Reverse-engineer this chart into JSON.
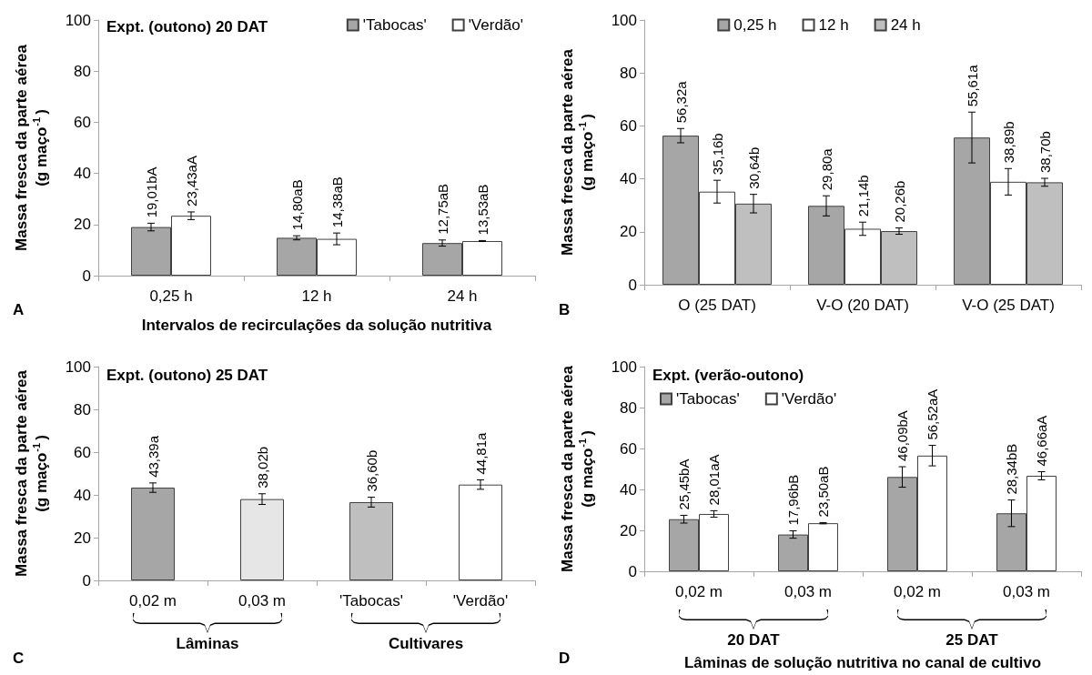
{
  "chart_data": [
    {
      "type": "bar",
      "title": "Expt. (outono) 20 DAT",
      "xlabel": "Intervalos de recirculações da solução nutritiva",
      "ylabel": "Massa fresca da parte aérea\n(g maço$^{-1}$)",
      "categories": [
        "0,25 h",
        "12 h",
        "24 h"
      ],
      "series": [
        {
          "name": "'Tabocas'",
          "color": "#a6a6a6",
          "values": [
            19.01,
            14.8,
            12.75
          ],
          "errors": [
            1.5,
            0.8,
            1.2
          ],
          "value_labels": [
            "19,01bA",
            "14,80aB",
            "12,75aB"
          ]
        },
        {
          "name": "'Verdão'",
          "color": "#ffffff",
          "values": [
            23.43,
            14.38,
            13.53
          ],
          "errors": [
            1.5,
            2.3,
            0.2
          ],
          "value_labels": [
            "23,43aA",
            "14,38aB",
            "13,53aB"
          ]
        }
      ],
      "ylim": [
        0,
        100
      ],
      "yticks": [
        0,
        20,
        40,
        60,
        80,
        100
      ],
      "legend": "top right",
      "grid": false,
      "annotations": [
        "A"
      ]
    },
    {
      "type": "bar",
      "ylabel": "Massa fresca da parte aérea\n(g maço$^{-1}$)",
      "categories": [
        "O (25 DAT)",
        "V-O (20 DAT)",
        "V-O (25 DAT)"
      ],
      "series": [
        {
          "name": "0,25 h",
          "color": "#a6a6a6",
          "values": [
            56.32,
            29.8,
            55.61
          ],
          "errors": [
            2.7,
            3.8,
            9.6
          ],
          "value_labels": [
            "56,32a",
            "29,80a",
            "55,61a"
          ]
        },
        {
          "name": "12 h",
          "color": "#ffffff",
          "values": [
            35.16,
            21.14,
            38.89
          ],
          "errors": [
            4.3,
            2.5,
            5.0
          ],
          "value_labels": [
            "35,16b",
            "21,14b",
            "38,89b"
          ]
        },
        {
          "name": "24 h",
          "color": "#bfbfbf",
          "values": [
            30.64,
            20.26,
            38.7
          ],
          "errors": [
            3.5,
            1.2,
            1.5
          ],
          "value_labels": [
            "30,64b",
            "20,26b",
            "38,70b"
          ]
        }
      ],
      "ylim": [
        0,
        100
      ],
      "yticks": [
        0,
        20,
        40,
        60,
        80,
        100
      ],
      "legend": "top",
      "grid": false,
      "annotations": [
        "B"
      ]
    },
    {
      "type": "bar",
      "title": "Expt. (outono) 25 DAT",
      "ylabel": "Massa fresca da parte aérea\n(g maço$^{-1}$)",
      "categories": [
        "0,02 m",
        "0,03 m",
        "'Tabocas'",
        "'Verdão'"
      ],
      "values": [
        43.39,
        38.02,
        36.6,
        44.81
      ],
      "colors": [
        "#a6a6a6",
        "#e6e6e6",
        "#bfbfbf",
        "#ffffff"
      ],
      "errors": [
        2.2,
        2.5,
        2.3,
        2.2
      ],
      "value_labels": [
        "43,39a",
        "38,02b",
        "36,60b",
        "44,81a"
      ],
      "ylim": [
        0,
        100
      ],
      "yticks": [
        0,
        20,
        40,
        60,
        80,
        100
      ],
      "grid": false,
      "annotations": [
        "C",
        "Lâminas",
        "Cultivares"
      ]
    },
    {
      "type": "bar",
      "title": "Expt. (verão-outono)",
      "xlabel": "Lâminas de solução nutritiva no canal de cultivo",
      "ylabel": "Massa fresca da parte aérea\n(g maço$^{-1}$)",
      "categories": [
        "0,02 m",
        "0,03 m",
        "0,02 m",
        "0,03 m"
      ],
      "series": [
        {
          "name": "'Tabocas'",
          "color": "#a6a6a6",
          "values": [
            25.45,
            17.96,
            46.09,
            28.34
          ],
          "errors": [
            1.9,
            1.8,
            5.0,
            6.5
          ],
          "value_labels": [
            "25,45bA",
            "17,96bB",
            "46,09bA",
            "28,34bB"
          ]
        },
        {
          "name": "'Verdão'",
          "color": "#ffffff",
          "values": [
            28.01,
            23.5,
            56.52,
            46.66
          ],
          "errors": [
            1.6,
            0.3,
            5.0,
            2.0
          ],
          "value_labels": [
            "28,01aA",
            "23,50aB",
            "56,52aA",
            "46,66aA"
          ]
        }
      ],
      "ylim": [
        0,
        100
      ],
      "yticks": [
        0,
        20,
        40,
        60,
        80,
        100
      ],
      "legend": "top left",
      "grid": false,
      "annotations": [
        "D",
        "20 DAT",
        "25 DAT"
      ]
    }
  ]
}
